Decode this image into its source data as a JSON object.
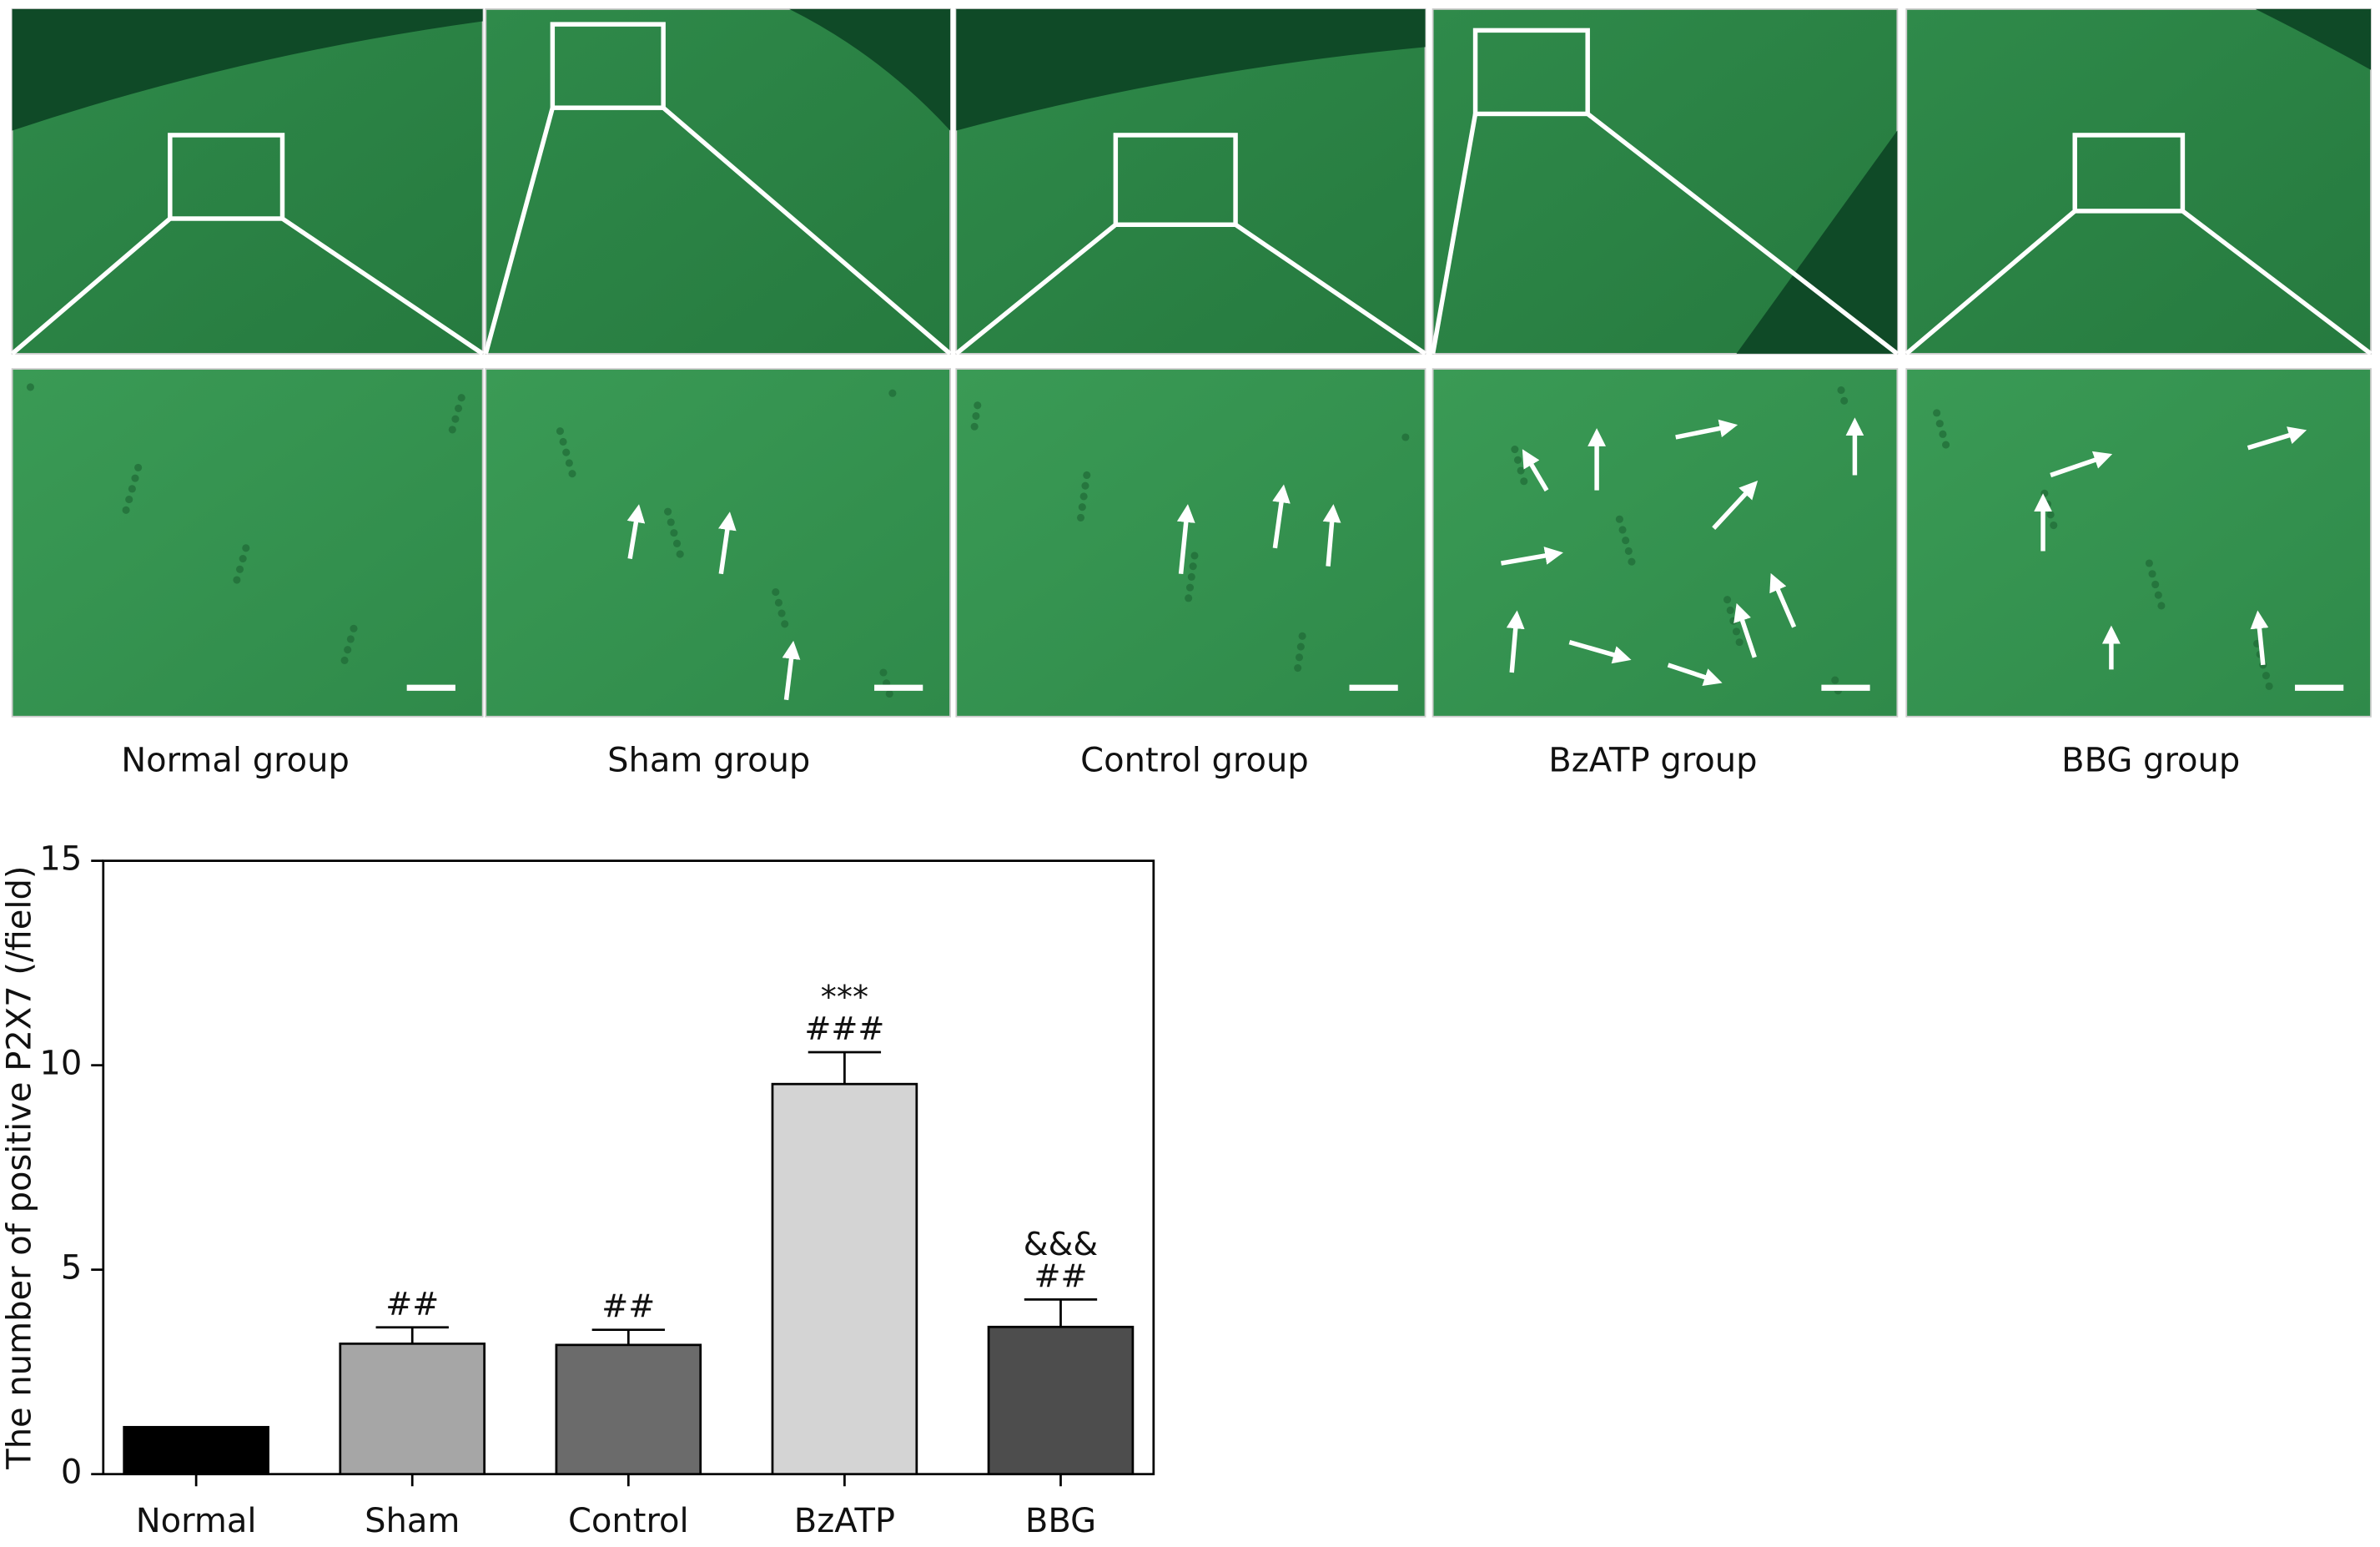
{
  "panels": {
    "labels": [
      "Normal group",
      "Sham group",
      "Control group",
      "BzATP group",
      "BBG group"
    ]
  },
  "chart_data": {
    "type": "bar",
    "y_label": "The number of positive P2X7 (/field)",
    "categories": [
      "Normal",
      "Sham",
      "Control",
      "BzATP",
      "BBG"
    ],
    "values": [
      1.15,
      3.19,
      3.16,
      9.54,
      3.6
    ],
    "errors": [
      0,
      0.4,
      0.37,
      0.78,
      0.67
    ],
    "colors": [
      "#000000",
      "#a6a6a6",
      "#6b6b6b",
      "#d4d4d4",
      "#4d4d4d"
    ],
    "annotations": [
      null,
      [
        "##"
      ],
      [
        "##"
      ],
      [
        "***",
        "###"
      ],
      [
        "&&&",
        "##"
      ]
    ],
    "ylim": [
      0,
      15
    ],
    "yticks": [
      0,
      5,
      10,
      15
    ]
  }
}
